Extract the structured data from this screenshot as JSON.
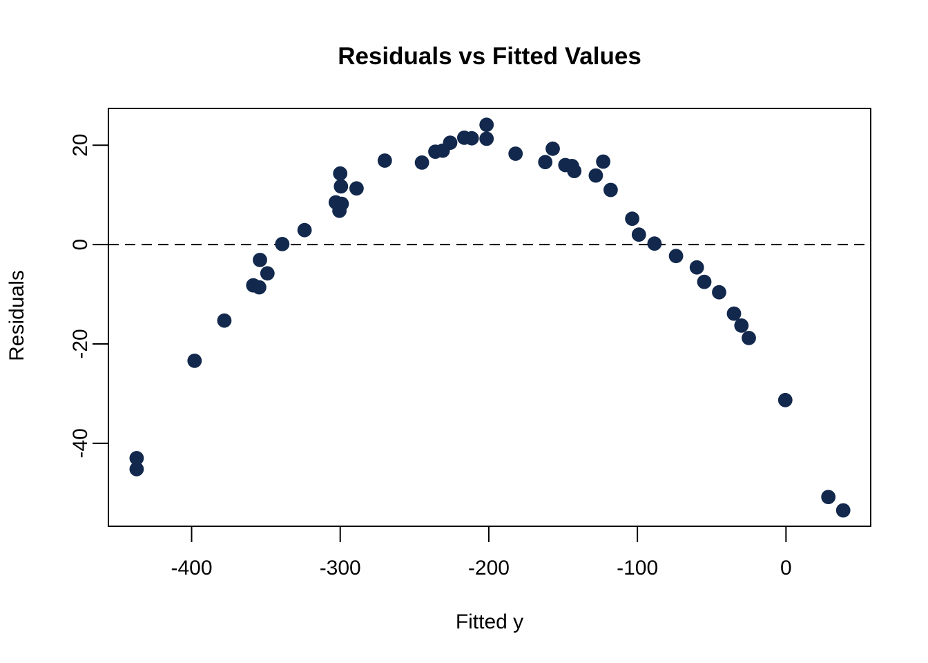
{
  "page": {
    "background": "#ffffff",
    "foreground": "#000000"
  },
  "chart_data": {
    "type": "scatter",
    "title": "Residuals vs Fitted Values",
    "xlabel": "Fitted y",
    "ylabel": "Residuals",
    "x_ticks": [
      -400,
      -300,
      -200,
      -100,
      0
    ],
    "y_ticks": [
      20,
      0,
      -20,
      -40
    ],
    "xlim": [
      -456,
      57
    ],
    "ylim": [
      -56.7,
      27.4
    ],
    "grid": false,
    "legend": null,
    "reference_line": {
      "y": 0,
      "style": "dashed",
      "color": "#000000"
    },
    "point_color": "#12284C",
    "points": [
      [
        -437,
        -43.0
      ],
      [
        -437,
        -45.2
      ],
      [
        -398,
        -23.4
      ],
      [
        -378,
        -15.3
      ],
      [
        -358.5,
        -8.2
      ],
      [
        -354.5,
        -8.6
      ],
      [
        -354,
        -3.1
      ],
      [
        -349,
        -5.8
      ],
      [
        -339,
        0.1
      ],
      [
        -324,
        2.9
      ],
      [
        -303,
        8.5
      ],
      [
        -300.5,
        6.8
      ],
      [
        -300,
        14.3
      ],
      [
        -299.5,
        11.7
      ],
      [
        -299,
        8.2
      ],
      [
        -289,
        11.3
      ],
      [
        -270,
        16.9
      ],
      [
        -245,
        16.5
      ],
      [
        -236,
        18.7
      ],
      [
        -231,
        18.9
      ],
      [
        -226,
        20.5
      ],
      [
        -216.5,
        21.5
      ],
      [
        -211.5,
        21.4
      ],
      [
        -201.5,
        24.1
      ],
      [
        -201.5,
        21.3
      ],
      [
        -182,
        18.3
      ],
      [
        -162,
        16.6
      ],
      [
        -157,
        19.3
      ],
      [
        -148.5,
        16.0
      ],
      [
        -144,
        15.8
      ],
      [
        -142.5,
        14.8
      ],
      [
        -128,
        13.9
      ],
      [
        -123,
        16.7
      ],
      [
        -118,
        11.0
      ],
      [
        -103.5,
        5.2
      ],
      [
        -99,
        2.0
      ],
      [
        -88.5,
        0.2
      ],
      [
        -74,
        -2.3
      ],
      [
        -60,
        -4.6
      ],
      [
        -55,
        -7.5
      ],
      [
        -45,
        -9.6
      ],
      [
        -35,
        -13.9
      ],
      [
        -30,
        -16.3
      ],
      [
        -25,
        -18.8
      ],
      [
        -0.5,
        -31.3
      ],
      [
        28.5,
        -50.8
      ],
      [
        38.5,
        -53.5
      ]
    ]
  }
}
